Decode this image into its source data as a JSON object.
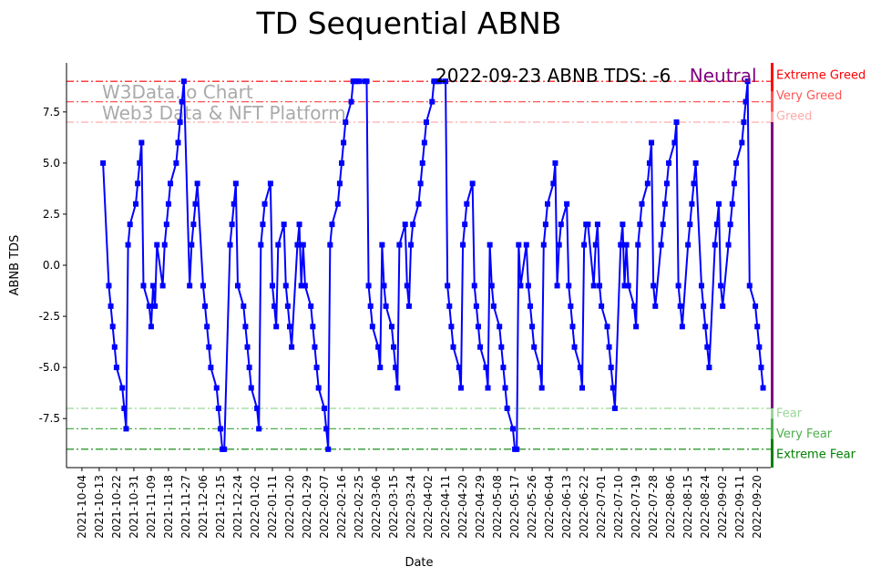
{
  "chart_data": {
    "type": "line",
    "title": "TD Sequential ABNB",
    "xlabel": "Date",
    "ylabel": "ABNB TDS",
    "ylim": [
      -9.9,
      9.9
    ],
    "y_ticks": [
      "-7.5",
      "-5.0",
      "-2.5",
      "0.0",
      "2.5",
      "5.0",
      "7.5"
    ],
    "y_tick_values": [
      -7.5,
      -5,
      -2.5,
      0,
      2.5,
      5,
      7.5
    ],
    "x_range": [
      "2021-09-26",
      "2022-09-27"
    ],
    "x_ticks": [
      "2021-10-04",
      "2021-10-13",
      "2021-10-22",
      "2021-10-31",
      "2021-11-09",
      "2021-11-18",
      "2021-11-27",
      "2021-12-06",
      "2021-12-15",
      "2021-12-24",
      "2022-01-02",
      "2022-01-11",
      "2022-01-20",
      "2022-01-29",
      "2022-02-07",
      "2022-02-16",
      "2022-02-25",
      "2022-03-06",
      "2022-03-15",
      "2022-03-24",
      "2022-04-02",
      "2022-04-11",
      "2022-04-20",
      "2022-04-29",
      "2022-05-08",
      "2022-05-17",
      "2022-05-26",
      "2022-06-04",
      "2022-06-13",
      "2022-06-22",
      "2022-07-01",
      "2022-07-10",
      "2022-07-19",
      "2022-07-28",
      "2022-08-06",
      "2022-08-15",
      "2022-08-24",
      "2022-09-02",
      "2022-09-11",
      "2022-09-20"
    ],
    "series_end_date": "2022-09-23",
    "series_frequency": "trading days (weekdays)",
    "series": [
      {
        "name": "ABNB TDS",
        "color": "#0000ff",
        "values": [
          5,
          -1,
          -2,
          -3,
          -4,
          -5,
          -6,
          -7,
          -8,
          1,
          2,
          3,
          4,
          5,
          6,
          -1,
          -2,
          -3,
          -1,
          -2,
          1,
          -1,
          1,
          2,
          3,
          4,
          5,
          6,
          7,
          8,
          9,
          -1,
          1,
          2,
          3,
          4,
          -1,
          -2,
          -3,
          -4,
          -5,
          -6,
          -7,
          -8,
          -9,
          -9,
          1,
          2,
          3,
          4,
          -1,
          -2,
          -3,
          -4,
          -5,
          -6,
          -7,
          -8,
          1,
          2,
          3,
          4,
          -1,
          -2,
          -3,
          1,
          2,
          -1,
          -2,
          -3,
          -4,
          1,
          2,
          -1,
          1,
          -1,
          -2,
          -3,
          -4,
          -5,
          -6,
          -7,
          -8,
          -9,
          1,
          2,
          3,
          4,
          5,
          6,
          7,
          8,
          9,
          9,
          9,
          9,
          9,
          9,
          -1,
          -2,
          -3,
          -4,
          -5,
          1,
          -1,
          -2,
          -3,
          -4,
          -5,
          -6,
          1,
          2,
          -1,
          -2,
          1,
          2,
          3,
          4,
          5,
          6,
          7,
          8,
          9,
          9,
          9,
          9,
          9,
          -1,
          -2,
          -3,
          -4,
          -5,
          -6,
          1,
          2,
          3,
          4,
          -1,
          -2,
          -3,
          -4,
          -5,
          -6,
          1,
          -1,
          -2,
          -3,
          -4,
          -5,
          -6,
          -7,
          -8,
          -9,
          -9,
          1,
          -1,
          1,
          -1,
          -2,
          -3,
          -4,
          -5,
          -6,
          1,
          2,
          3,
          4,
          5,
          -1,
          1,
          2,
          3,
          -1,
          -2,
          -3,
          -4,
          -5,
          -6,
          1,
          2,
          2,
          -1,
          1,
          2,
          -1,
          -2,
          -3,
          -4,
          -5,
          -6,
          -7,
          1,
          2,
          -1,
          1,
          -1,
          -2,
          -3,
          1,
          2,
          3,
          4,
          5,
          6,
          -1,
          -2,
          1,
          2,
          3,
          4,
          5,
          6,
          7,
          -1,
          -2,
          -3,
          1,
          2,
          3,
          4,
          5,
          -1,
          -2,
          -3,
          -4,
          -5,
          1,
          2,
          3,
          -1,
          -2,
          1,
          2,
          3,
          4,
          5,
          6,
          7,
          8,
          9,
          -1,
          -2,
          -3,
          -4,
          -5,
          -6
        ]
      }
    ],
    "levels": [
      {
        "value": 9,
        "label": "Extreme Greed",
        "color": "#ff0000"
      },
      {
        "value": 8,
        "label": "Very Greed",
        "color": "#ff5555"
      },
      {
        "value": 7,
        "label": "Greed",
        "color": "#ffaaaa"
      },
      {
        "value": -7,
        "label": "Fear",
        "color": "#99d699"
      },
      {
        "value": -8,
        "label": "Very Fear",
        "color": "#4caf4c"
      },
      {
        "value": -9,
        "label": "Extreme Fear",
        "color": "#008000"
      }
    ],
    "neutral_color": "#800080",
    "annotation": {
      "text": "2022-09-23 ABNB TDS: -6",
      "status": "Neutral"
    },
    "watermark": [
      "W3Data.io Chart",
      "Web3 Data & NFT Platform"
    ]
  }
}
